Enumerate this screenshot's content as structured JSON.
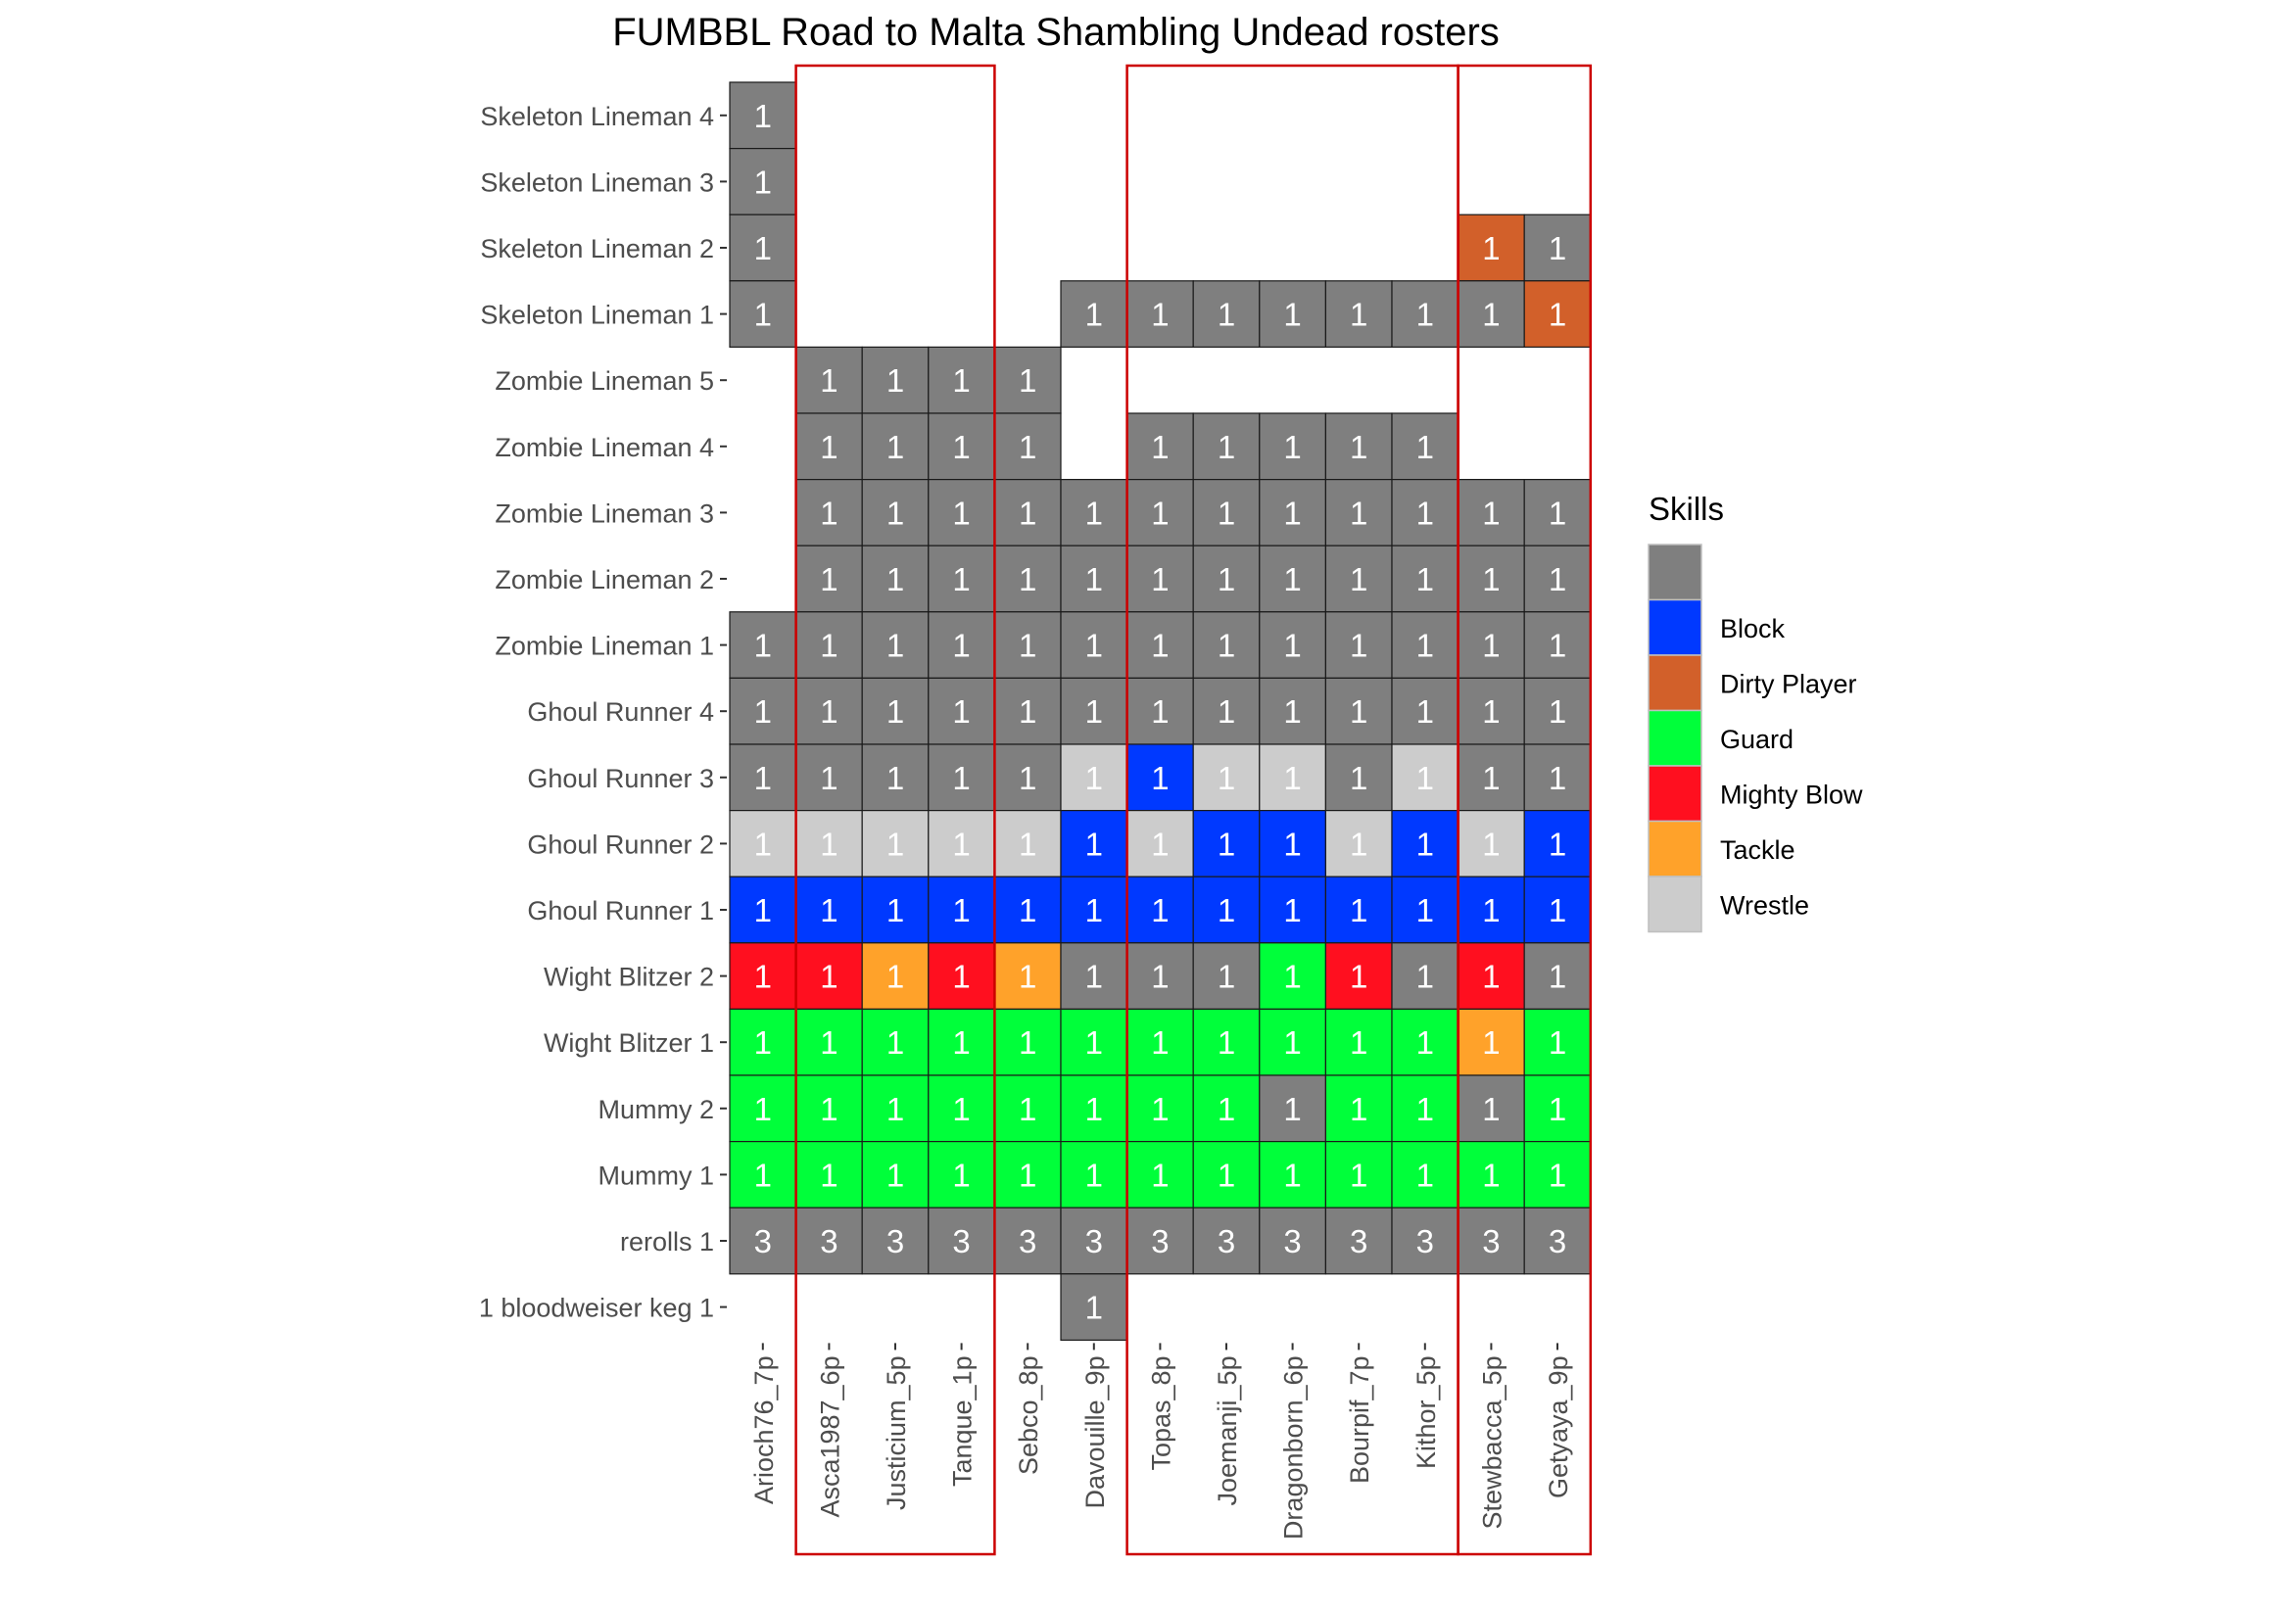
{
  "chart_data": {
    "type": "heatmap",
    "title": "FUMBBL Road to Malta Shambling Undead rosters",
    "xlabel": "",
    "ylabel": "",
    "grid": false,
    "legend_position": "right",
    "x": [
      "Arioch76_7p",
      "Asca1987_6p",
      "Justicium_5p",
      "Tanque_1p",
      "Sebco_8p",
      "Davouille_9p",
      "Topas_8p",
      "Joemanji_5p",
      "Dragonborn_6p",
      "Bourpif_7p",
      "Kithor_5p",
      "Stewbacca_5p",
      "Getyaya_9p"
    ],
    "y": [
      "Skeleton Lineman 4",
      "Skeleton Lineman 3",
      "Skeleton Lineman 2",
      "Skeleton Lineman 1",
      "Zombie Lineman 5",
      "Zombie Lineman 4",
      "Zombie Lineman 3",
      "Zombie Lineman 2",
      "Zombie Lineman 1",
      "Ghoul Runner 4",
      "Ghoul Runner 3",
      "Ghoul Runner 2",
      "Ghoul Runner 1",
      "Wight Blitzer 2",
      "Wight Blitzer 1",
      "Mummy 2",
      "Mummy 1",
      "rerolls 1",
      "1 bloodweiser keg 1"
    ],
    "legend": {
      "title": "Skills",
      "entries": [
        {
          "key": "N",
          "label": "",
          "color": "#7f7f7f"
        },
        {
          "key": "B",
          "label": "Block",
          "color": "#0039ff"
        },
        {
          "key": "D",
          "label": "Dirty Player",
          "color": "#d2602a"
        },
        {
          "key": "G",
          "label": "Guard",
          "color": "#00ff3a"
        },
        {
          "key": "M",
          "label": "Mighty Blow",
          "color": "#ff0f1f"
        },
        {
          "key": "T",
          "label": "Tackle",
          "color": "#ffa22a"
        },
        {
          "key": "W",
          "label": "Wrestle",
          "color": "#cccccc"
        }
      ]
    },
    "cells": [
      [
        "N1",
        "",
        "",
        "",
        "",
        "",
        "",
        "",
        "",
        "",
        "",
        "",
        ""
      ],
      [
        "N1",
        "",
        "",
        "",
        "",
        "",
        "",
        "",
        "",
        "",
        "",
        "",
        ""
      ],
      [
        "N1",
        "",
        "",
        "",
        "",
        "",
        "",
        "",
        "",
        "",
        "",
        "D1",
        "N1"
      ],
      [
        "N1",
        "",
        "",
        "",
        "",
        "N1",
        "N1",
        "N1",
        "N1",
        "N1",
        "N1",
        "N1",
        "D1"
      ],
      [
        "",
        "N1",
        "N1",
        "N1",
        "N1",
        "",
        "",
        "",
        "",
        "",
        "",
        "",
        ""
      ],
      [
        "",
        "N1",
        "N1",
        "N1",
        "N1",
        "",
        "N1",
        "N1",
        "N1",
        "N1",
        "N1",
        "",
        ""
      ],
      [
        "",
        "N1",
        "N1",
        "N1",
        "N1",
        "N1",
        "N1",
        "N1",
        "N1",
        "N1",
        "N1",
        "N1",
        "N1"
      ],
      [
        "",
        "N1",
        "N1",
        "N1",
        "N1",
        "N1",
        "N1",
        "N1",
        "N1",
        "N1",
        "N1",
        "N1",
        "N1"
      ],
      [
        "N1",
        "N1",
        "N1",
        "N1",
        "N1",
        "N1",
        "N1",
        "N1",
        "N1",
        "N1",
        "N1",
        "N1",
        "N1"
      ],
      [
        "N1",
        "N1",
        "N1",
        "N1",
        "N1",
        "N1",
        "N1",
        "N1",
        "N1",
        "N1",
        "N1",
        "N1",
        "N1"
      ],
      [
        "N1",
        "N1",
        "N1",
        "N1",
        "N1",
        "W1",
        "B1",
        "W1",
        "W1",
        "N1",
        "W1",
        "N1",
        "N1"
      ],
      [
        "W1",
        "W1",
        "W1",
        "W1",
        "W1",
        "B1",
        "W1",
        "B1",
        "B1",
        "W1",
        "B1",
        "W1",
        "B1"
      ],
      [
        "B1",
        "B1",
        "B1",
        "B1",
        "B1",
        "B1",
        "B1",
        "B1",
        "B1",
        "B1",
        "B1",
        "B1",
        "B1"
      ],
      [
        "M1",
        "M1",
        "T1",
        "M1",
        "T1",
        "N1",
        "N1",
        "N1",
        "G1",
        "M1",
        "N1",
        "M1",
        "N1"
      ],
      [
        "G1",
        "G1",
        "G1",
        "G1",
        "G1",
        "G1",
        "G1",
        "G1",
        "G1",
        "G1",
        "G1",
        "T1",
        "G1"
      ],
      [
        "G1",
        "G1",
        "G1",
        "G1",
        "G1",
        "G1",
        "G1",
        "G1",
        "N1",
        "G1",
        "G1",
        "N1",
        "G1"
      ],
      [
        "G1",
        "G1",
        "G1",
        "G1",
        "G1",
        "G1",
        "G1",
        "G1",
        "G1",
        "G1",
        "G1",
        "G1",
        "G1"
      ],
      [
        "N3",
        "N3",
        "N3",
        "N3",
        "N3",
        "N3",
        "N3",
        "N3",
        "N3",
        "N3",
        "N3",
        "N3",
        "N3"
      ],
      [
        "",
        "",
        "",
        "",
        "",
        "N1",
        "",
        "",
        "",
        "",
        "",
        "",
        ""
      ]
    ],
    "groups": [
      {
        "from": "Asca1987_6p",
        "to": "Tanque_1p"
      },
      {
        "from": "Topas_8p",
        "to": "Kithor_5p"
      },
      {
        "from": "Stewbacca_5p",
        "to": "Getyaya_9p"
      }
    ],
    "group_color": "#cc0000"
  }
}
